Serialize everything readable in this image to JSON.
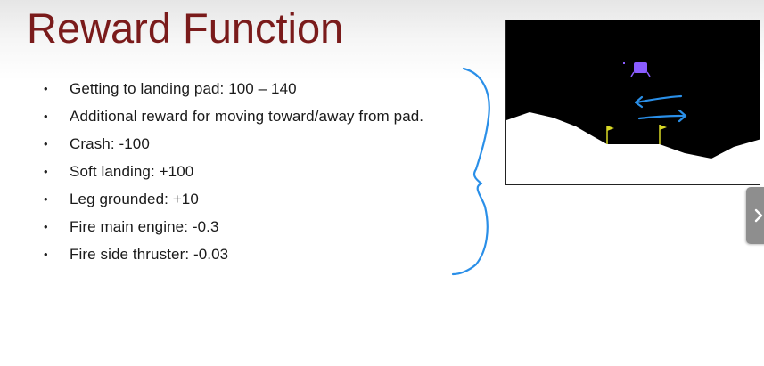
{
  "slide": {
    "title": "Reward Function",
    "bullets": [
      "Getting to landing pad: 100 – 140",
      "Additional reward for moving toward/away from pad.",
      "Crash: -100",
      "Soft landing: +100",
      "Leg grounded: +10",
      "Fire main engine: -0.3",
      "Fire side thruster: -0.03"
    ],
    "bullet_glyph": "•"
  },
  "illustration": {
    "description_icon": "lunar-lander-environment",
    "sky_color": "#000000",
    "ground_color": "#ffffff",
    "lander_color": "#8a5cff",
    "flag_color": "#d8d826",
    "arrow_color": "#2a8fe8",
    "arrows_icon": "left-right-arrows-icon"
  },
  "annotation": {
    "brace_icon": "hand-drawn-curly-brace-icon",
    "brace_color": "#2a8fe8"
  },
  "controls": {
    "next_icon": "chevron-right-icon"
  }
}
